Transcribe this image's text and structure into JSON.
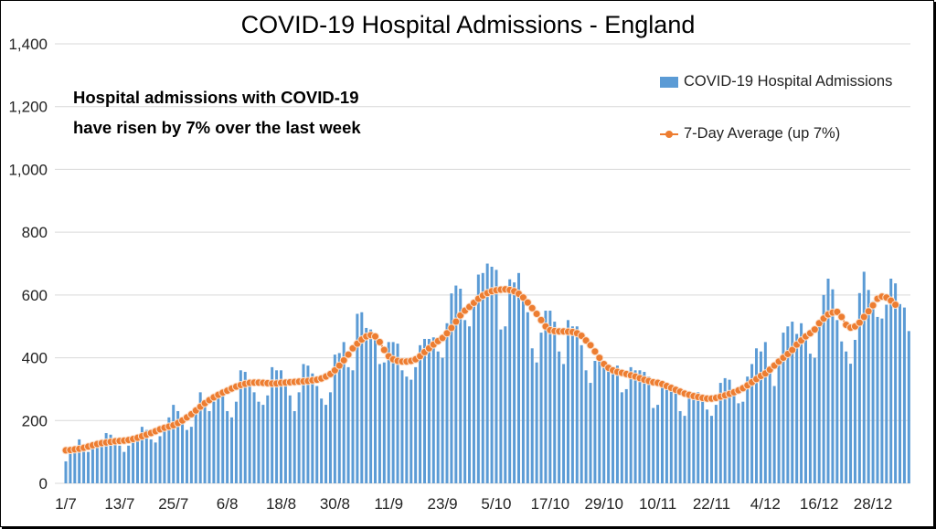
{
  "chart_data": {
    "type": "bar+line",
    "title": "COVID-19 Hospital Admissions - England",
    "annotation": [
      "Hospital admissions with COVID-19",
      "have risen by 7% over the last week"
    ],
    "xlabel": "",
    "ylabel": "",
    "ylim": [
      0,
      1400
    ],
    "y_ticks": [
      0,
      200,
      400,
      600,
      800,
      1000,
      1200,
      1400
    ],
    "y_tick_labels": [
      "0",
      "200",
      "400",
      "600",
      "800",
      "1,000",
      "1,200",
      "1,400"
    ],
    "x_tick_labels": [
      "1/7",
      "13/7",
      "25/7",
      "6/8",
      "18/8",
      "30/8",
      "11/9",
      "23/9",
      "5/10",
      "17/10",
      "29/10",
      "10/11",
      "22/11",
      "4/12",
      "16/12",
      "28/12"
    ],
    "x_tick_interval_days": 12,
    "grid": "horizontal",
    "legend_position": "top-right",
    "series": [
      {
        "name": "COVID-19 Hospital Admissions",
        "type": "bar",
        "color": "#5B9BD5",
        "values": [
          70,
          100,
          110,
          140,
          100,
          100,
          110,
          120,
          130,
          160,
          155,
          130,
          120,
          100,
          120,
          130,
          150,
          180,
          170,
          140,
          130,
          150,
          180,
          210,
          250,
          230,
          200,
          170,
          180,
          220,
          290,
          250,
          230,
          260,
          290,
          280,
          230,
          210,
          260,
          360,
          355,
          310,
          290,
          260,
          250,
          280,
          370,
          360,
          360,
          320,
          280,
          230,
          290,
          380,
          375,
          350,
          310,
          270,
          250,
          290,
          410,
          415,
          450,
          370,
          360,
          540,
          545,
          495,
          490,
          470,
          380,
          385,
          450,
          450,
          445,
          360,
          340,
          330,
          370,
          440,
          460,
          460,
          465,
          420,
          400,
          510,
          605,
          630,
          620,
          520,
          500,
          580,
          665,
          670,
          700,
          690,
          680,
          490,
          500,
          650,
          640,
          670,
          580,
          545,
          430,
          385,
          480,
          550,
          550,
          515,
          420,
          380,
          520,
          500,
          500,
          440,
          360,
          320,
          390,
          405,
          390,
          370,
          360,
          375,
          290,
          300,
          370,
          360,
          360,
          355,
          340,
          240,
          250,
          310,
          315,
          315,
          300,
          230,
          215,
          270,
          290,
          290,
          280,
          235,
          215,
          250,
          320,
          335,
          330,
          300,
          255,
          260,
          340,
          380,
          430,
          420,
          450,
          360,
          310,
          375,
          480,
          500,
          515,
          476,
          510,
          461,
          413,
          400,
          505,
          600,
          652,
          618,
          520,
          452,
          420,
          381,
          457,
          606,
          674,
          616,
          580,
          530,
          525,
          569,
          652,
          637,
          571,
          560,
          485
        ]
      },
      {
        "name": "7-Day Average (up 7%)",
        "type": "line",
        "color": "#ED7D31",
        "values": [
          105,
          106,
          108,
          110,
          113,
          117,
          121,
          125,
          128,
          130,
          132,
          134,
          135,
          136,
          138,
          141,
          145,
          150,
          155,
          160,
          166,
          172,
          177,
          181,
          185,
          192,
          200,
          210,
          220,
          232,
          244,
          255,
          265,
          274,
          282,
          289,
          295,
          302,
          308,
          313,
          317,
          320,
          321,
          321,
          320,
          319,
          318,
          318,
          320,
          321,
          322,
          323,
          324,
          325,
          326,
          328,
          330,
          334,
          340,
          348,
          360,
          375,
          392,
          410,
          430,
          445,
          458,
          468,
          472,
          468,
          450,
          425,
          405,
          395,
          390,
          388,
          388,
          390,
          395,
          405,
          418,
          430,
          442,
          453,
          463,
          478,
          495,
          515,
          535,
          550,
          562,
          575,
          588,
          598,
          606,
          612,
          615,
          617,
          618,
          616,
          612,
          604,
          592,
          576,
          558,
          540,
          520,
          500,
          488,
          485,
          484,
          484,
          483,
          482,
          478,
          470,
          455,
          440,
          420,
          400,
          380,
          368,
          360,
          355,
          352,
          348,
          344,
          340,
          335,
          330,
          326,
          322,
          320,
          316,
          310,
          304,
          298,
          292,
          286,
          282,
          278,
          275,
          272,
          270,
          270,
          272,
          276,
          280,
          285,
          290,
          296,
          303,
          312,
          322,
          332,
          342,
          350,
          362,
          375,
          388,
          400,
          412,
          425,
          442,
          455,
          468,
          478,
          490,
          510,
          525,
          538,
          544,
          546,
          530,
          505,
          496,
          500,
          512,
          530,
          548,
          567,
          588,
          595,
          592,
          582,
          569
        ]
      }
    ]
  }
}
